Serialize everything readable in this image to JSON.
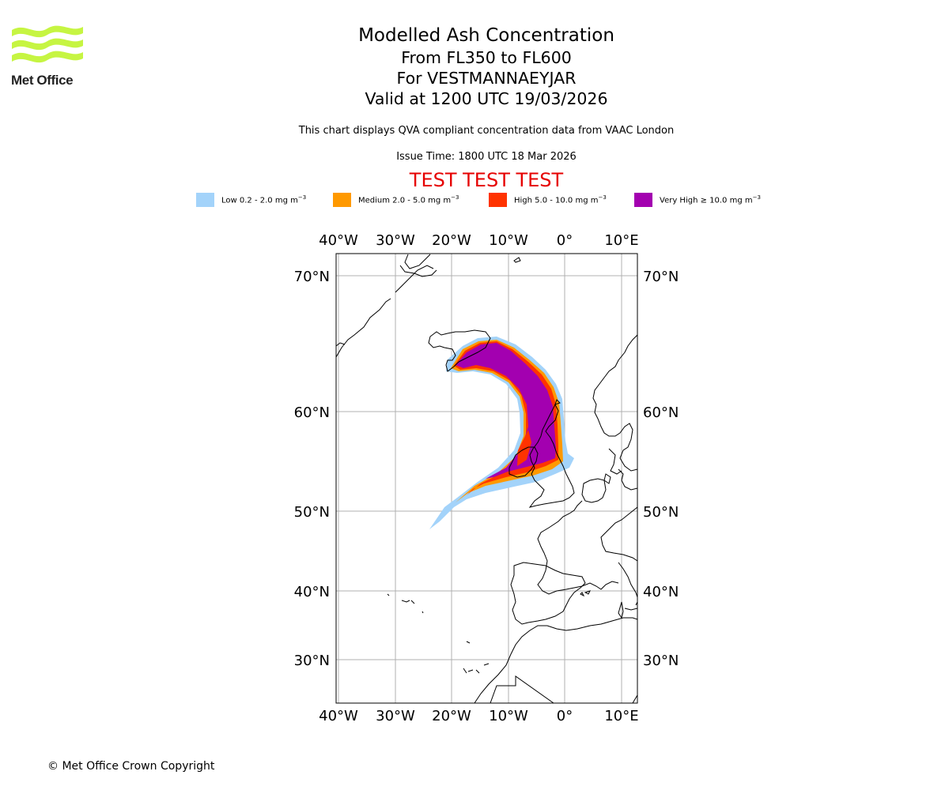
{
  "logo": {
    "text": "Met Office",
    "color": "#c6f542"
  },
  "title": {
    "line1": "Modelled Ash Concentration",
    "line2": "From FL350 to FL600",
    "line3": "For VESTMANNAEYJAR",
    "line4": "Valid at 1200 UTC 19/03/2026"
  },
  "subtitle": "This chart displays QVA compliant concentration data from VAAC London",
  "issue_time": "Issue Time: 1800 UTC 18 Mar 2026",
  "test_banner": "TEST TEST TEST",
  "legend": [
    {
      "label": "Low 0.2 - 2.0 mg m",
      "color": "#a3d3fa"
    },
    {
      "label": "Medium 2.0 - 5.0 mg m",
      "color": "#ff9900"
    },
    {
      "label": "High 5.0 - 10.0 mg m",
      "color": "#ff3300"
    },
    {
      "label": "Very High ≥ 10.0 mg m",
      "color": "#a300b0"
    }
  ],
  "legend_unit_exponent": "−3",
  "map": {
    "lon_labels": [
      "40°W",
      "30°W",
      "20°W",
      "10°W",
      "0°",
      "10°E"
    ],
    "lat_labels": [
      "70°N",
      "60°N",
      "50°N",
      "40°N",
      "30°N"
    ],
    "extent": {
      "lon": [
        -40,
        12
      ],
      "lat": [
        25,
        72
      ]
    }
  },
  "copyright": "© Met Office Crown Copyright"
}
